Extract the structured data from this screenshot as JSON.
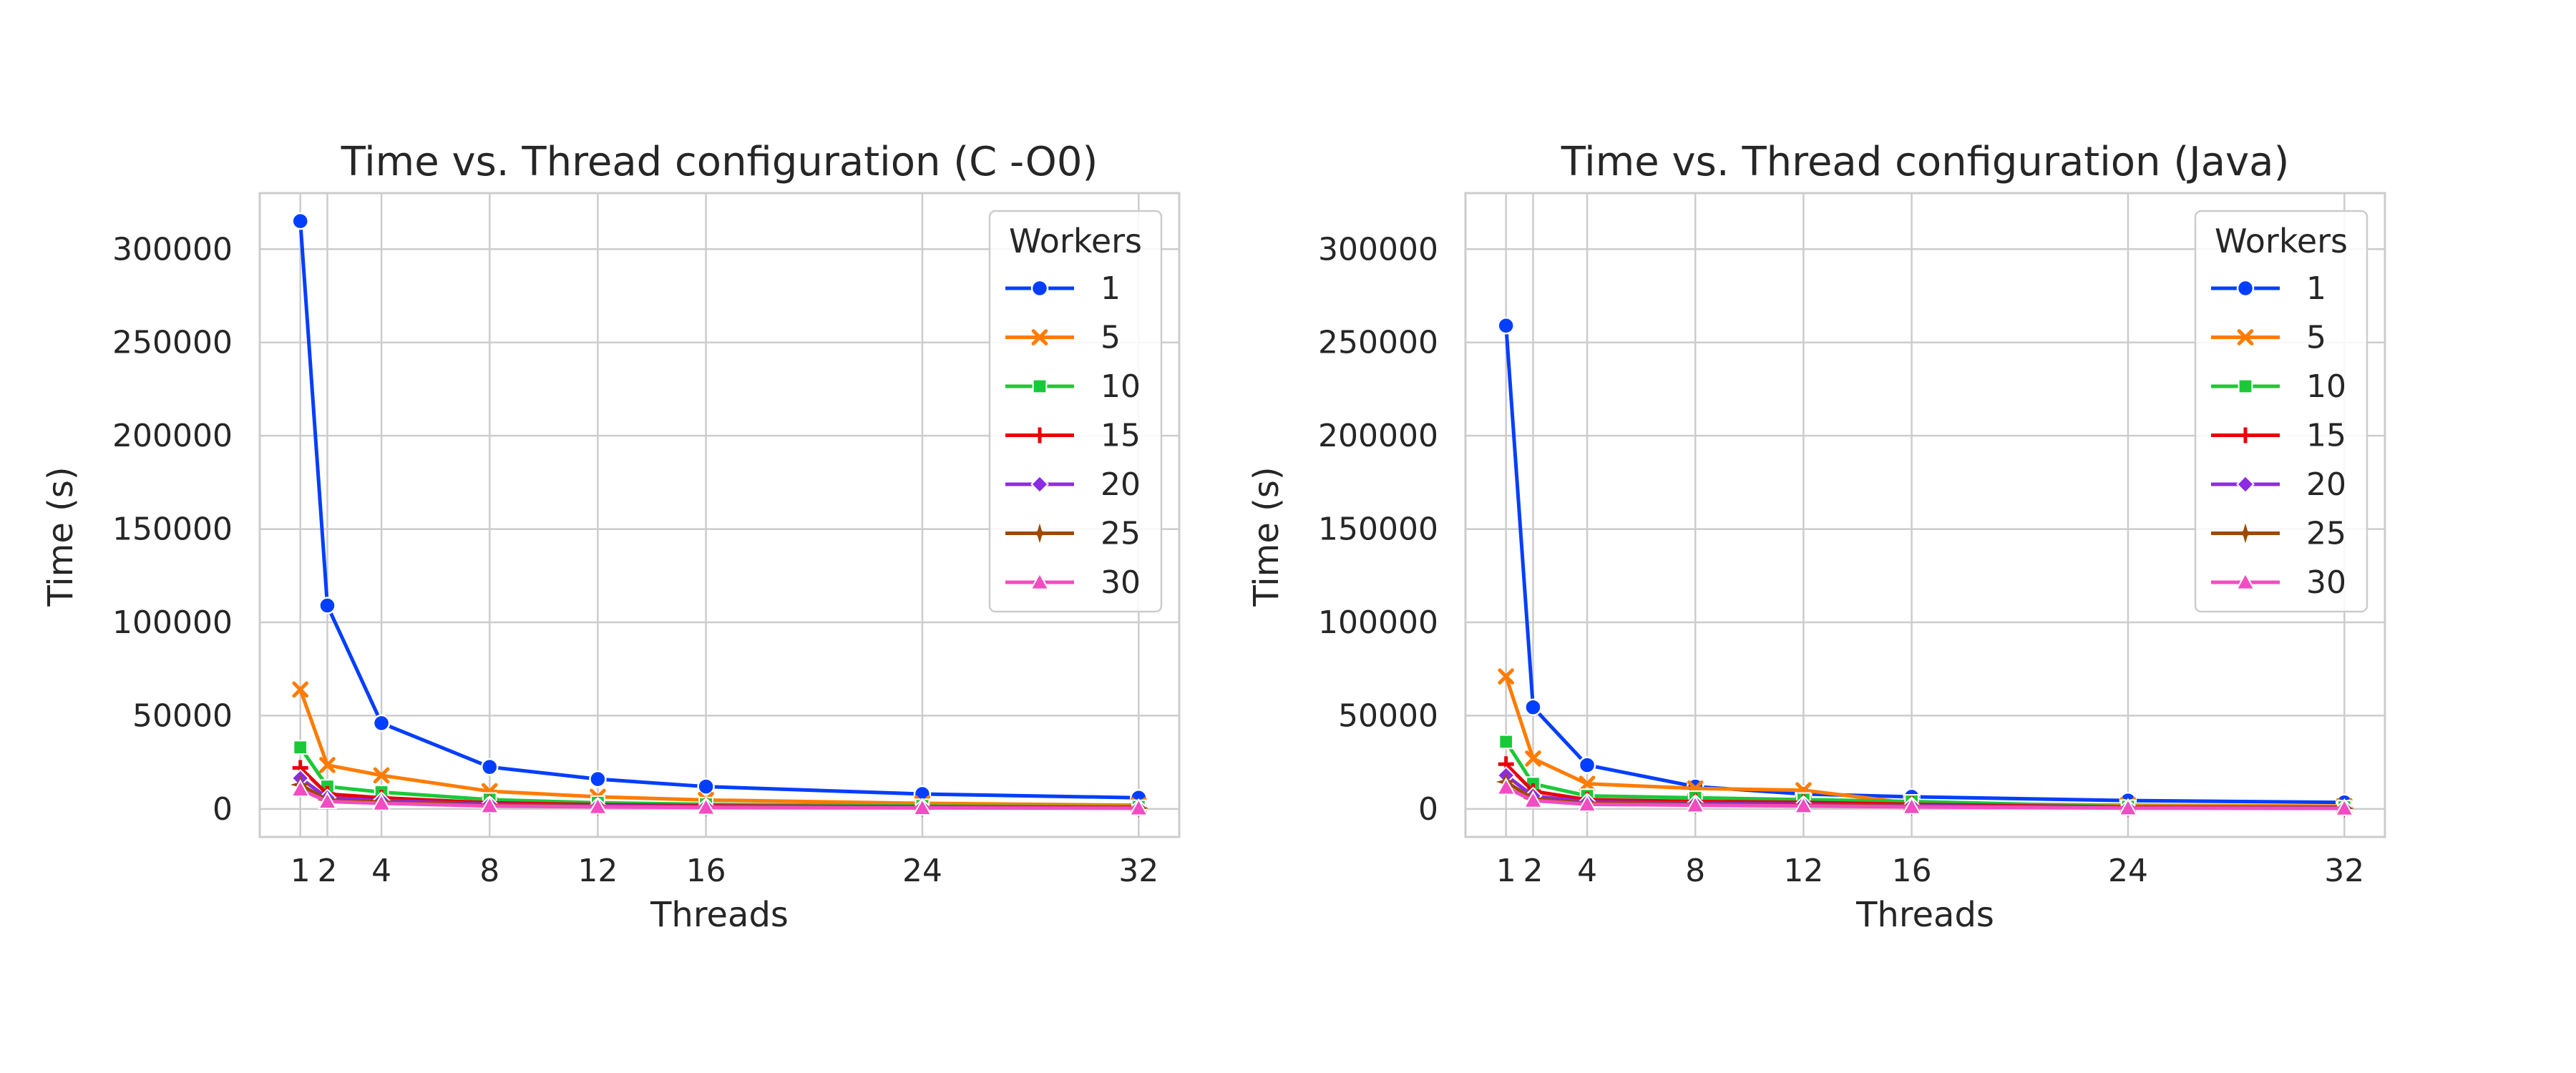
{
  "chart_data": [
    {
      "type": "line",
      "title": "Time vs. Thread configuration (C -O0)",
      "xlabel": "Threads",
      "ylabel": "Time (s)",
      "x": [
        1,
        2,
        4,
        8,
        12,
        16,
        24,
        32
      ],
      "xticks": [
        1,
        2,
        4,
        8,
        12,
        16,
        24,
        32
      ],
      "xlim": [
        -0.5,
        33.5
      ],
      "yticks": [
        0,
        50000,
        100000,
        150000,
        200000,
        250000,
        300000
      ],
      "ylim": [
        -15000,
        330000
      ],
      "grid": true,
      "legend": {
        "title": "Workers",
        "placement": "top-right"
      },
      "series": [
        {
          "name": "1",
          "marker": "circle",
          "color": "#023eff",
          "values": [
            315000,
            109000,
            46000,
            22500,
            16000,
            12000,
            8000,
            6000
          ]
        },
        {
          "name": "5",
          "marker": "x",
          "color": "#ff7c00",
          "values": [
            64000,
            23500,
            18000,
            9500,
            6500,
            4800,
            3000,
            2000
          ]
        },
        {
          "name": "10",
          "marker": "square",
          "color": "#1ac938",
          "values": [
            33000,
            12000,
            9000,
            5000,
            3300,
            2500,
            1600,
            1100
          ]
        },
        {
          "name": "15",
          "marker": "plus",
          "color": "#e8000b",
          "values": [
            22000,
            8000,
            6000,
            3300,
            2300,
            1700,
            1100,
            800
          ]
        },
        {
          "name": "20",
          "marker": "diamond",
          "color": "#8b2be2",
          "values": [
            16500,
            6000,
            4500,
            2500,
            1700,
            1300,
            900,
            600
          ]
        },
        {
          "name": "25",
          "marker": "star",
          "color": "#9f4800",
          "values": [
            13000,
            4800,
            3700,
            2000,
            1400,
            1000,
            700,
            500
          ]
        },
        {
          "name": "30",
          "marker": "triangle",
          "color": "#f14cc1",
          "values": [
            10500,
            4000,
            3000,
            1600,
            1100,
            800,
            550,
            400
          ]
        }
      ]
    },
    {
      "type": "line",
      "title": "Time vs. Thread configuration (Java)",
      "xlabel": "Threads",
      "ylabel": "Time (s)",
      "x": [
        1,
        2,
        4,
        8,
        12,
        16,
        24,
        32
      ],
      "xticks": [
        1,
        2,
        4,
        8,
        12,
        16,
        24,
        32
      ],
      "xlim": [
        -0.5,
        33.5
      ],
      "yticks": [
        0,
        50000,
        100000,
        150000,
        200000,
        250000,
        300000
      ],
      "ylim": [
        -15000,
        330000
      ],
      "grid": true,
      "legend": {
        "title": "Workers",
        "placement": "top-right"
      },
      "series": [
        {
          "name": "1",
          "marker": "circle",
          "color": "#023eff",
          "values": [
            259000,
            54500,
            23500,
            12000,
            8000,
            6500,
            4500,
            3500
          ]
        },
        {
          "name": "5",
          "marker": "x",
          "color": "#ff7c00",
          "values": [
            71000,
            27000,
            13500,
            11000,
            10000,
            3000,
            2000,
            1500
          ]
        },
        {
          "name": "10",
          "marker": "square",
          "color": "#1ac938",
          "values": [
            36000,
            13500,
            7000,
            6000,
            5000,
            4000,
            1200,
            900
          ]
        },
        {
          "name": "15",
          "marker": "plus",
          "color": "#e8000b",
          "values": [
            24000,
            9500,
            5000,
            4000,
            3500,
            2500,
            900,
            700
          ]
        },
        {
          "name": "20",
          "marker": "diamond",
          "color": "#8b2be2",
          "values": [
            18000,
            7000,
            3800,
            3000,
            2500,
            1800,
            700,
            500
          ]
        },
        {
          "name": "25",
          "marker": "star",
          "color": "#9f4800",
          "values": [
            14500,
            5500,
            3000,
            2400,
            2000,
            1400,
            550,
            400
          ]
        },
        {
          "name": "30",
          "marker": "triangle",
          "color": "#f14cc1",
          "values": [
            11500,
            4500,
            2500,
            2000,
            1600,
            1100,
            450,
            300
          ]
        }
      ]
    }
  ]
}
